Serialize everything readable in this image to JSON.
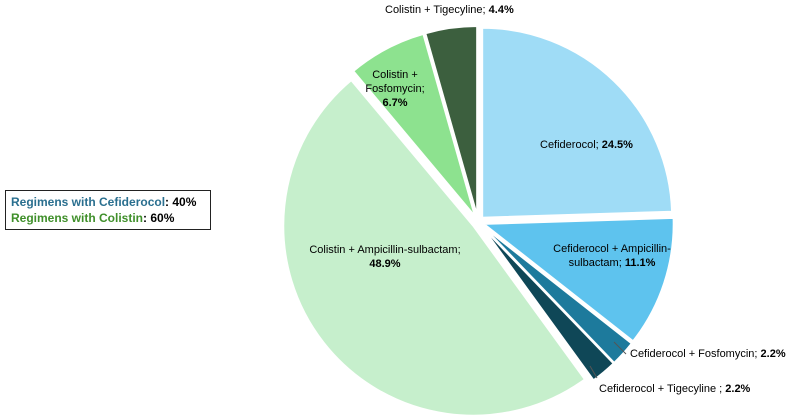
{
  "chart_data": {
    "type": "pie",
    "slices": [
      {
        "label": "Cefiderocol",
        "value": 24.5,
        "value_text": "24.5%",
        "color": "#9fdcf6"
      },
      {
        "label": "Cefiderocol + Ampicillin-sulbactam",
        "value": 11.1,
        "value_text": "11.1%",
        "color": "#5ec3ee"
      },
      {
        "label": "Cefiderocol + Fosfomycin",
        "value": 2.2,
        "value_text": "2.2%",
        "color": "#1d7a9c"
      },
      {
        "label": "Cefiderocol + Tigecyline ",
        "value": 2.2,
        "value_text": "2.2%",
        "color": "#0f4757"
      },
      {
        "label": "Colistin + Ampicillin-sulbactam",
        "value": 48.9,
        "value_text": "48.9%",
        "color": "#c6efcc"
      },
      {
        "label": "Colistin + Fosfomycin",
        "value": 6.7,
        "value_text": "6.7%",
        "color": "#8de28f"
      },
      {
        "label": "Colistin + Tigecyline",
        "value": 4.4,
        "value_text": "4.4%",
        "color": "#3c5f3e"
      }
    ],
    "start": "12 o'clock",
    "direction": "clockwise",
    "slice_border_color": "#ffffff"
  },
  "legend": {
    "rows": [
      {
        "label": "Regimens with Cefiderocol",
        "value": "40%",
        "color": "#2a6f8f"
      },
      {
        "label": "Regimens with Colistin",
        "value": "60%",
        "color": "#3f8f2a"
      }
    ]
  },
  "labels": {
    "colistin_tigecyline": {
      "name": "Colistin + Tigecyline",
      "value": "4.4%"
    },
    "colistin_fosfomycin": {
      "line1": "Colistin +",
      "line2": "Fosfomycin;",
      "value": "6.7%"
    },
    "cefiderocol": {
      "name": "Cefiderocol;",
      "value": "24.5%"
    },
    "cefiderocol_ampicillin": {
      "line1": "Cefiderocol + Ampicillin-",
      "line2": "sulbactam;",
      "value": "11.1%"
    },
    "colistin_ampicillin": {
      "name": "Colistin + Ampicillin-sulbactam;",
      "value": "48.9%"
    },
    "cefiderocol_fosfomycin": {
      "name": "Cefiderocol + Fosfomycin;",
      "value": "2.2%"
    },
    "cefiderocol_tigecyline": {
      "name": "Cefiderocol + Tigecyline ;",
      "value": "2.2%"
    }
  }
}
